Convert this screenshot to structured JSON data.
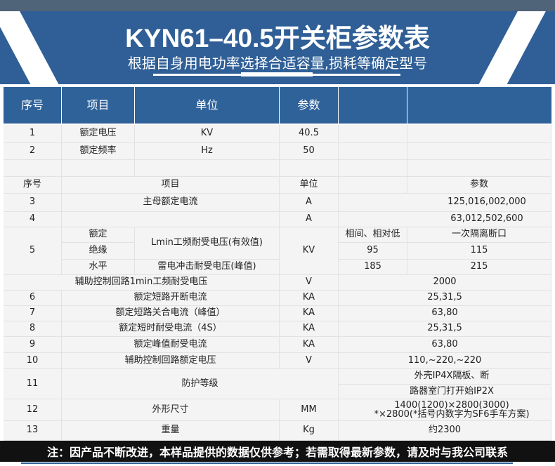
{
  "title": "KYN61–40.5开关柜参数表",
  "subtitle": "根据自身用电功率选择合适容量,损耗等确定型号",
  "colors": {
    "brand_blue": "#2f5f96",
    "header_blue": "#2f6299",
    "footer_bg": "#111111"
  },
  "header": [
    "序号",
    "项目",
    "单位",
    "参数"
  ],
  "rows": {
    "r1": [
      "1",
      "额定电压",
      "KV",
      "40.5"
    ],
    "r2": [
      "2",
      "额定频率",
      "Hz",
      "50"
    ],
    "sub": [
      "序号",
      "项目",
      "单位",
      "参数"
    ],
    "r3": [
      "3",
      "主母额定电流",
      "A",
      "125,016,002,000"
    ],
    "r4": [
      "4",
      "A",
      "63,012,502,600"
    ],
    "r5": {
      "no": "5",
      "g1": "额定",
      "g2": "绝缘",
      "g3": "水平",
      "item1": "Lmin工频耐受电压(有效值)",
      "item2": "雷电冲击耐受电压(峰值)",
      "unit": "KV",
      "h1": "相间、相对低",
      "h2": "一次隔离断口",
      "v1a": "95",
      "v1b": "115",
      "v2a": "185",
      "v2b": "215"
    },
    "aux": [
      "辅助控制回路1min工频耐受电压",
      "V",
      "2000"
    ],
    "r6": [
      "6",
      "额定短路开断电流",
      "KA",
      "25,31,5"
    ],
    "r7": [
      "7",
      "额定短路关合电流（峰值）",
      "KA",
      "63,80"
    ],
    "r8": [
      "8",
      "额定短时耐受电流（4S）",
      "KA",
      "25,31,5"
    ],
    "r9": [
      "9",
      "额定峰值耐受电流",
      "KA",
      "63,80"
    ],
    "r10": [
      "10",
      "辅助控制回路额定电压",
      "V",
      "110,~220,~220"
    ],
    "r11": [
      "11",
      "防护等级",
      "外壳IP4X隔板、断",
      "路器室门打开始IP2X"
    ],
    "r12": [
      "12",
      "外形尺寸",
      "MM",
      "1400(1200)×2800(3000)",
      "*×2800(*括号内数字为SF6手车方案)"
    ],
    "r13": [
      "13",
      "重量",
      "Kg",
      "约2300"
    ]
  },
  "footer": "注：因产品不断改进，本样品提供的数据仅供参考；若需取得最新参数，请及时与我公司联系"
}
